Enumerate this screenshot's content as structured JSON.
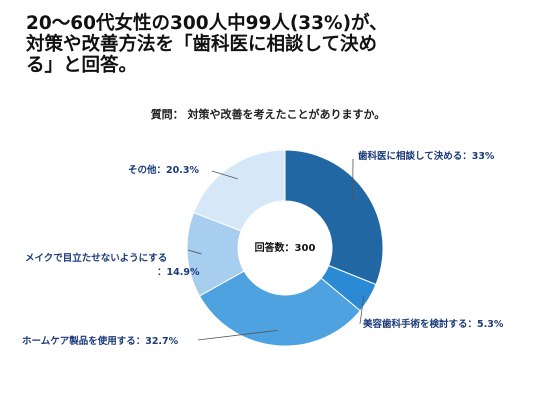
{
  "headline": {
    "lines": [
      "20～60代女性の300人中99人(33%)が、",
      "対策や改善方法を「歯科医に相談して決め",
      "る」と回答。"
    ]
  },
  "subtitle": "質問： 対策や改善を考えたことがありますか。",
  "chart_data": {
    "type": "pie",
    "donut": true,
    "start": "top, clockwise",
    "center_label": "回答数：300",
    "slices": [
      {
        "label": "歯科医に相談して決める：33%",
        "value": 33,
        "color": "#2067a3"
      },
      {
        "label": "美容歯科手術を検討する：5.3%",
        "value": 5.3,
        "color": "#2b8ad4"
      },
      {
        "label": "ホームケア製品を使用する：32.7%",
        "value": 32.7,
        "color": "#4ea2e0"
      },
      {
        "label": [
          "メイクで目立たせないようにする",
          "：14.9%"
        ],
        "value": 14.9,
        "color": "#a7cdef"
      },
      {
        "label": "その他：20.3%",
        "value": 20.3,
        "color": "#d6e8f8"
      }
    ]
  }
}
